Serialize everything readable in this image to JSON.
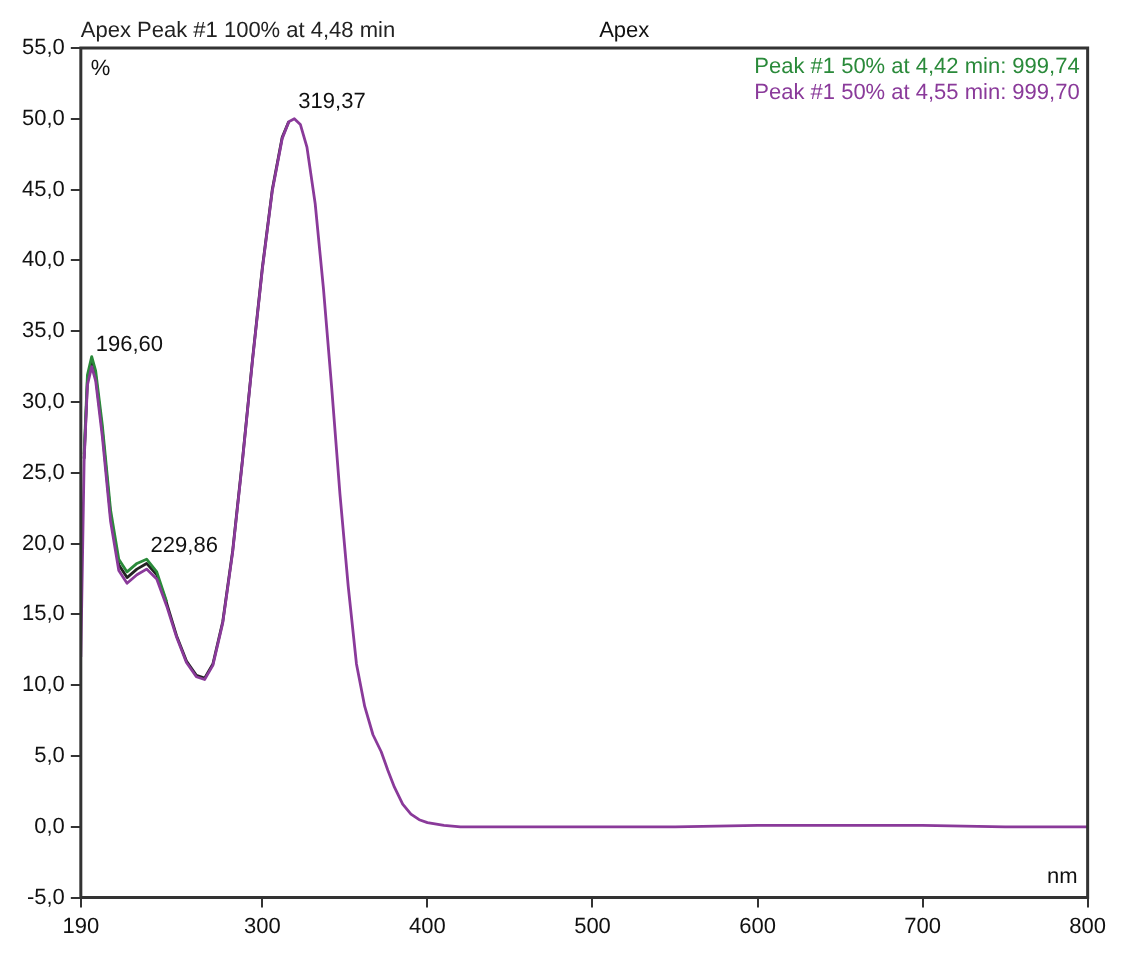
{
  "chart_data": {
    "type": "line",
    "title": "Apex",
    "xlabel": "nm",
    "ylabel": "%",
    "legend": "top right",
    "x": [
      190,
      192,
      194,
      196.6,
      199,
      203,
      208,
      213,
      218,
      224,
      229.86,
      236,
      242,
      248,
      254,
      260,
      265,
      270,
      276,
      282,
      288,
      294,
      300,
      306,
      312,
      316,
      319.37,
      323,
      327,
      332,
      337,
      342,
      347,
      352,
      357,
      362,
      367,
      372,
      376,
      380,
      385,
      390,
      395,
      400,
      410,
      420,
      450,
      500,
      550,
      600,
      650,
      700,
      750,
      800
    ],
    "series": [
      {
        "name": "Apex Peak #1 100% at 4,48 min",
        "color": "#222222",
        "values": [
          null,
          26,
          31.5,
          32.8,
          31.8,
          28,
          22,
          18.5,
          17.6,
          18.2,
          18.6,
          17.8,
          15.8,
          13.5,
          11.7,
          10.7,
          10.5,
          11.5,
          14.5,
          19.5,
          26,
          33,
          39.5,
          45,
          48.7,
          49.8,
          null,
          null,
          null,
          null,
          null,
          null,
          null,
          null,
          null,
          null,
          null,
          null,
          null,
          null,
          null,
          null,
          null,
          null,
          null,
          null,
          null,
          null,
          null,
          null,
          null,
          null,
          null,
          null
        ]
      },
      {
        "name": "Peak #1 50% at 4,42 min: 999,74",
        "color": "#2a8a3a",
        "values": [
          null,
          26.3,
          31.9,
          33.2,
          32.2,
          28.4,
          22.4,
          18.9,
          18,
          18.6,
          18.9,
          18,
          15.9,
          null,
          null,
          null,
          null,
          null,
          null,
          null,
          null,
          null,
          null,
          null,
          null,
          null,
          null,
          null,
          null,
          null,
          null,
          null,
          null,
          null,
          null,
          null,
          null,
          null,
          null,
          null,
          null,
          null,
          null,
          null,
          null,
          null,
          null,
          null,
          null,
          null,
          null,
          null,
          null,
          null
        ]
      },
      {
        "name": "Peak #1 50% at 4,55 min: 999,70",
        "color": "#8a3a9a",
        "values": [
          12,
          25.8,
          31.2,
          32.5,
          31.5,
          27.6,
          21.6,
          18.1,
          17.2,
          17.8,
          18.2,
          17.5,
          15.6,
          13.4,
          11.6,
          10.6,
          10.4,
          11.4,
          14.4,
          19.4,
          25.9,
          32.9,
          39.4,
          44.9,
          48.6,
          49.8,
          50,
          49.6,
          48,
          44,
          38,
          31,
          23.5,
          17,
          11.5,
          8.5,
          6.5,
          5.3,
          4,
          2.8,
          1.6,
          0.9,
          0.5,
          0.3,
          0.1,
          0,
          0,
          0,
          0,
          0.1,
          0.1,
          0.1,
          0,
          0
        ]
      }
    ],
    "xlim": [
      190,
      800
    ],
    "xticks": [
      190,
      300,
      400,
      500,
      600,
      700,
      800
    ],
    "ylim": [
      -5,
      55
    ],
    "yticks": [
      {
        "value": -5,
        "label": "-5,0"
      },
      {
        "value": 0,
        "label": "0,0"
      },
      {
        "value": 5,
        "label": "5,0"
      },
      {
        "value": 10,
        "label": "10,0"
      },
      {
        "value": 15,
        "label": "15,0"
      },
      {
        "value": 20,
        "label": "20,0"
      },
      {
        "value": 25,
        "label": "25,0"
      },
      {
        "value": 30,
        "label": "30,0"
      },
      {
        "value": 35,
        "label": "35,0"
      },
      {
        "value": 40,
        "label": "40,0"
      },
      {
        "value": 45,
        "label": "45,0"
      },
      {
        "value": 50,
        "label": "50,0"
      },
      {
        "value": 55,
        "label": "55,0"
      }
    ],
    "annotations": [
      {
        "text": "196,60",
        "x": 196.6,
        "y": 32.8
      },
      {
        "text": "229,86",
        "x": 229.86,
        "y": 18.6
      },
      {
        "text": "319,37",
        "x": 319.37,
        "y": 50
      }
    ],
    "grid": false
  }
}
